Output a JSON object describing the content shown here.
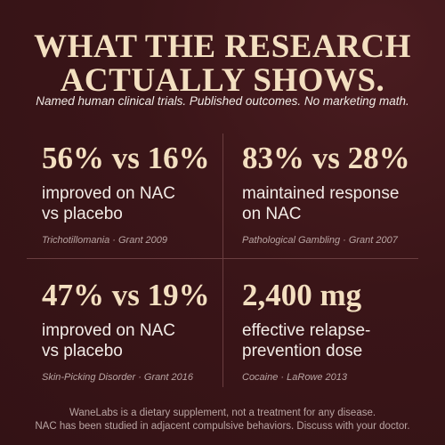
{
  "header": {
    "title_lines": [
      "WHAT THE RESEARCH",
      "ACTUALLY SHOWS."
    ],
    "subtitle": "Named human clinical trials. Published outcomes. No marketing math."
  },
  "stats": [
    {
      "stat": "56% vs 16%",
      "lines": [
        "improved on NAC",
        "vs placebo"
      ],
      "source": "Trichotillomania · Grant 2009"
    },
    {
      "stat": "83% vs 28%",
      "lines": [
        "maintained response",
        "on NAC"
      ],
      "source": "Pathological Gambling · Grant 2007"
    },
    {
      "stat": "47% vs 19%",
      "lines": [
        "improved on NAC",
        "vs placebo"
      ],
      "source": "Skin-Picking Disorder · Grant 2016"
    },
    {
      "stat": "2,400 mg",
      "lines": [
        "effective relapse-",
        "prevention dose"
      ],
      "source": "Cocaine · LaRowe 2013"
    }
  ],
  "footer": {
    "lines": [
      "WaneLabs is a dietary supplement, not a treatment for any disease.",
      "NAC has been studied in adjacent compulsive behaviors. Discuss with your doctor."
    ]
  }
}
